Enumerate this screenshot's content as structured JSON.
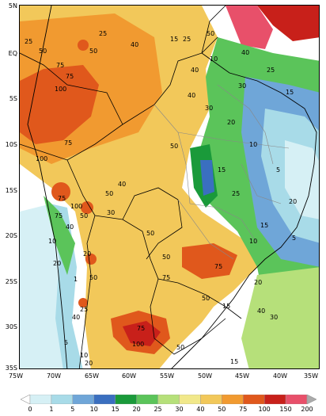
{
  "map": {
    "lat_labels": [
      "5N",
      "EQ",
      "5S",
      "10S",
      "15S",
      "20S",
      "25S",
      "30S",
      "35S"
    ],
    "lon_labels": [
      "75W",
      "70W",
      "65W",
      "60W",
      "55W",
      "50W",
      "45W",
      "40W",
      "35W"
    ],
    "contour_labels": [
      "25",
      "50",
      "75",
      "100",
      "15",
      "40",
      "30",
      "10",
      "5",
      "20",
      "1",
      "150"
    ]
  },
  "legend": {
    "values": [
      "0",
      "1",
      "5",
      "10",
      "15",
      "20",
      "25",
      "30",
      "40",
      "50",
      "75",
      "100",
      "150",
      "200"
    ],
    "colors": [
      "#ffffff",
      "#d6f0f5",
      "#a8dbe8",
      "#6fa6d8",
      "#3a6fc0",
      "#1a9a3a",
      "#5bc45a",
      "#b6e07a",
      "#f1e88a",
      "#f2c85a",
      "#f19a30",
      "#e0581c",
      "#c8201a",
      "#e8506a",
      "#aaaaaa"
    ]
  }
}
